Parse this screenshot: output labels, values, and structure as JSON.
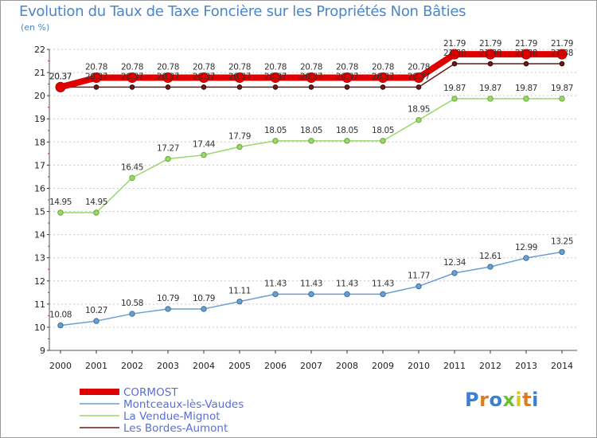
{
  "header": {
    "title": "Evolution du Taux de Taxe Foncière sur les Propriétés Non Bâties",
    "unit": "(en %)"
  },
  "logo": {
    "letters": [
      "P",
      "r",
      "o",
      "x",
      "i",
      "t",
      "i"
    ],
    "colors": [
      "#3a7fd0",
      "#e07b1a",
      "#3a7fd0",
      "#6cbf2e",
      "#e2c51c",
      "#e07b1a",
      "#3a7fd0"
    ]
  },
  "chart_data": {
    "type": "line",
    "title": "Evolution du Taux de Taxe Foncière sur les Propriétés Non Bâties",
    "ylabel": "(en %)",
    "xlabel": "",
    "ylim": [
      9,
      22
    ],
    "yticks": [
      9,
      10,
      11,
      12,
      13,
      14,
      15,
      16,
      17,
      18,
      19,
      20,
      21,
      22
    ],
    "grid": "horizontal dashed",
    "x": [
      2000,
      2001,
      2002,
      2003,
      2004,
      2005,
      2006,
      2007,
      2008,
      2009,
      2010,
      2011,
      2012,
      2013,
      2014
    ],
    "series": [
      {
        "name": "Les Bordes-Aumont",
        "color": "#6b1a1a",
        "width": 1.5,
        "marker": 2.8,
        "values": [
          20.37,
          20.37,
          20.37,
          20.37,
          20.37,
          20.37,
          20.37,
          20.37,
          20.37,
          20.37,
          20.37,
          21.38,
          21.38,
          21.38,
          21.38
        ],
        "labels": [
          "20.37",
          "20.37",
          "20.37",
          "20.37",
          "20.37",
          "20.37",
          "20.37",
          "20.37",
          "20.37",
          "20.37",
          "20.37",
          "21.38",
          "21.38",
          "21.38",
          "21.38"
        ]
      },
      {
        "name": "La Vendue-Mignot",
        "color": "#9ad86a",
        "width": 1.5,
        "marker": 3.2,
        "values": [
          14.95,
          14.95,
          16.45,
          17.27,
          17.44,
          17.79,
          18.05,
          18.05,
          18.05,
          18.05,
          18.95,
          19.87,
          19.87,
          19.87,
          19.87
        ],
        "labels": [
          "14.95",
          "14.95",
          "16.45",
          "17.27",
          "17.44",
          "17.79",
          "18.05",
          "18.05",
          "18.05",
          "18.05",
          "18.95",
          "19.87",
          "19.87",
          "19.87",
          "19.87"
        ]
      },
      {
        "name": "Montceaux-lès-Vaudes",
        "color": "#6c9fd0",
        "width": 1.5,
        "marker": 3.2,
        "values": [
          10.08,
          10.27,
          10.58,
          10.79,
          10.79,
          11.11,
          11.43,
          11.43,
          11.43,
          11.43,
          11.77,
          12.34,
          12.61,
          12.99,
          13.25
        ],
        "labels": [
          "10.08",
          "10.27",
          "10.58",
          "10.79",
          "10.79",
          "11.11",
          "11.43",
          "11.43",
          "11.43",
          "11.43",
          "11.77",
          "12.34",
          "12.61",
          "12.99",
          "13.25"
        ]
      },
      {
        "name": "CORMOST",
        "color": "#e00000",
        "width": 8,
        "marker": 6,
        "values": [
          20.37,
          20.78,
          20.78,
          20.78,
          20.78,
          20.78,
          20.78,
          20.78,
          20.78,
          20.78,
          20.78,
          21.79,
          21.79,
          21.79,
          21.79
        ],
        "labels": [
          "20.37",
          "20.78",
          "20.78",
          "20.78",
          "20.78",
          "20.78",
          "20.78",
          "20.78",
          "20.78",
          "20.78",
          "20.78",
          "21.79",
          "21.79",
          "21.79",
          "21.79"
        ]
      }
    ],
    "legend": {
      "placement": "bottom-left",
      "entries": [
        "CORMOST",
        "Montceaux-lès-Vaudes",
        "La Vendue-Mignot",
        "Les Bordes-Aumont"
      ]
    }
  }
}
